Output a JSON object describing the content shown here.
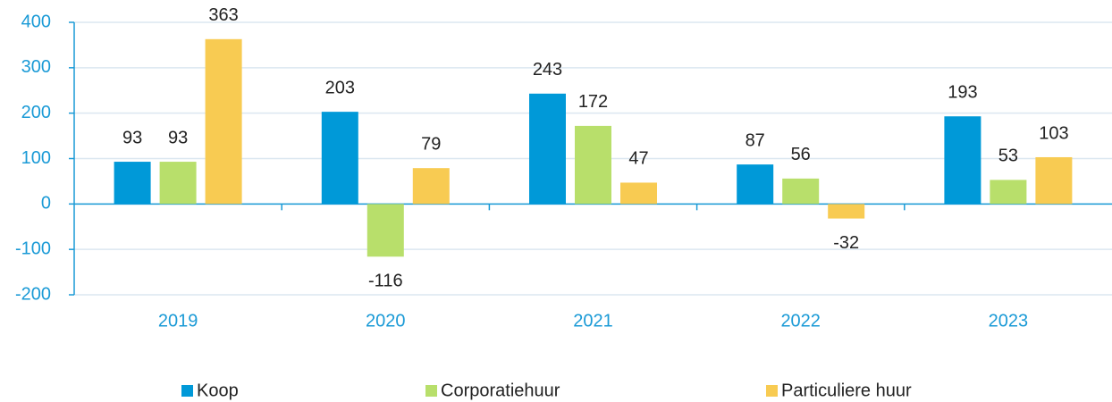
{
  "chart_data": {
    "type": "bar",
    "categories": [
      "2019",
      "2020",
      "2021",
      "2022",
      "2023"
    ],
    "series": [
      {
        "name": "Koop",
        "color": "#0099d8",
        "values": [
          93,
          203,
          243,
          87,
          193
        ]
      },
      {
        "name": "Corporatiehuur",
        "color": "#b8df6b",
        "values": [
          93,
          -116,
          172,
          56,
          53
        ]
      },
      {
        "name": "Particuliere huur",
        "color": "#f8cb52",
        "values": [
          363,
          79,
          47,
          -32,
          103
        ]
      }
    ],
    "ylim": [
      -200,
      400
    ],
    "yticks": [
      -200,
      -100,
      0,
      100,
      200,
      300,
      400
    ],
    "grid": true
  }
}
